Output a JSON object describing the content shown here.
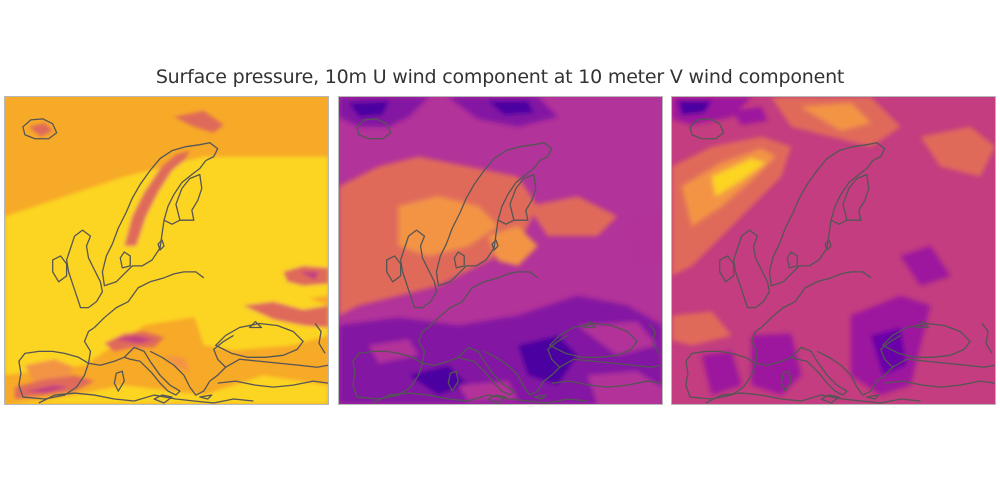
{
  "figure": {
    "title": "Surface pressure, 10m U wind component at 10 meter V wind component"
  },
  "panels": [
    {
      "variable": "surface-pressure",
      "colors": {
        "background": "#f7a928",
        "high": "#fcd424",
        "low": "#e06b5a",
        "lowest": "#c33d80"
      }
    },
    {
      "variable": "10m-u-wind",
      "colors": {
        "background": "#b2339a",
        "high": "#e4625f",
        "low": "#8312a3",
        "lowest": "#4b03a1"
      }
    },
    {
      "variable": "10m-v-wind",
      "colors": {
        "background": "#c33d80",
        "high": "#f39444",
        "low": "#9c179e",
        "lowest": "#4b03a1"
      }
    }
  ]
}
